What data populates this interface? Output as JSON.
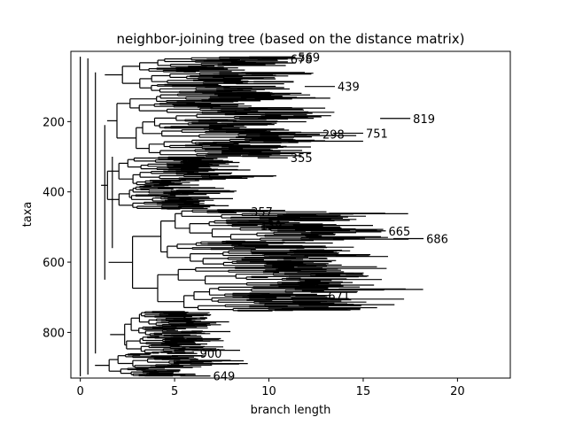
{
  "chart_data": {
    "type": "tree",
    "title": "neighbor-joining tree (based on the distance matrix)",
    "xlabel": "branch length",
    "ylabel": "taxa",
    "xlim": [
      -0.5,
      22.8
    ],
    "ylim": [
      930,
      0
    ],
    "x_ticks": [
      0,
      5,
      10,
      15,
      20
    ],
    "x_tick_labels": [
      "0",
      "5",
      "10",
      "15",
      "20"
    ],
    "y_ticks": [
      200,
      400,
      600,
      800
    ],
    "y_tick_labels": [
      "200",
      "400",
      "600",
      "800"
    ],
    "grid": false,
    "leaf_labels": [
      {
        "text": "569",
        "x": 11.4,
        "y": 17
      },
      {
        "text": "678",
        "x": 11.0,
        "y": 22
      },
      {
        "text": "439",
        "x": 13.5,
        "y": 100
      },
      {
        "text": "819",
        "x": 17.5,
        "y": 191
      },
      {
        "text": "298",
        "x": 12.7,
        "y": 236
      },
      {
        "text": "751",
        "x": 15.0,
        "y": 233
      },
      {
        "text": "355",
        "x": 11.0,
        "y": 303
      },
      {
        "text": "357",
        "x": 8.9,
        "y": 456
      },
      {
        "text": "139",
        "x": 9.4,
        "y": 495
      },
      {
        "text": "665",
        "x": 16.2,
        "y": 511
      },
      {
        "text": "686",
        "x": 18.2,
        "y": 533
      },
      {
        "text": "671",
        "x": 13.0,
        "y": 696
      },
      {
        "text": "900",
        "x": 6.2,
        "y": 860
      },
      {
        "text": "649",
        "x": 6.9,
        "y": 924
      }
    ]
  }
}
